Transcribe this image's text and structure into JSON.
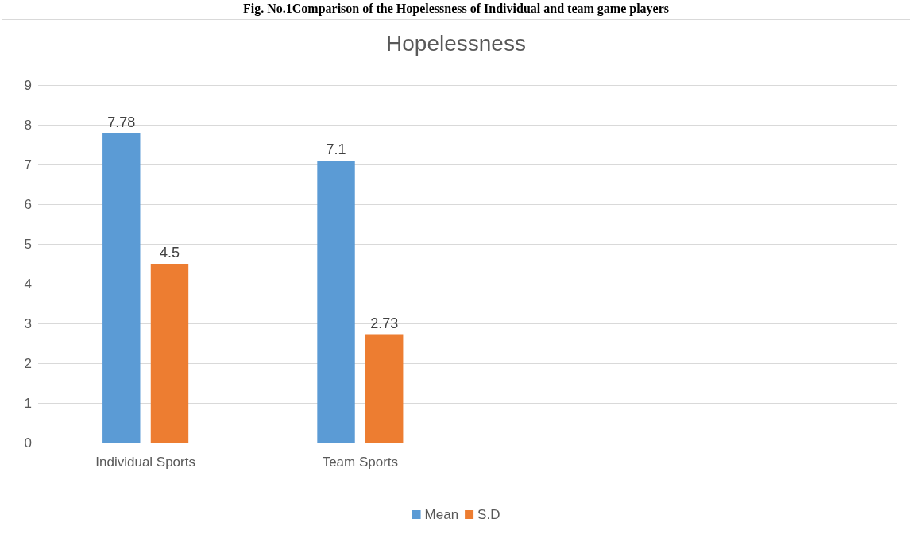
{
  "chart_data": {
    "type": "bar",
    "title": "Hopelessness",
    "annotations": [
      "Fig. No.1Comparison of the Hopelessness of Individual and team game players"
    ],
    "categories": [
      "Individual Sports",
      "Team Sports",
      null,
      null
    ],
    "series": [
      {
        "name": "Mean",
        "color": "#5b9bd5",
        "values": [
          7.78,
          7.1,
          null,
          null
        ]
      },
      {
        "name": "S.D",
        "color": "#ed7d31",
        "values": [
          4.5,
          2.73,
          null,
          null
        ]
      }
    ],
    "ylim": [
      0,
      9
    ],
    "yticks": [
      0,
      1,
      2,
      3,
      4,
      5,
      6,
      7,
      8,
      9
    ],
    "grid": "y",
    "legend": "bottom",
    "data_labels": true
  }
}
